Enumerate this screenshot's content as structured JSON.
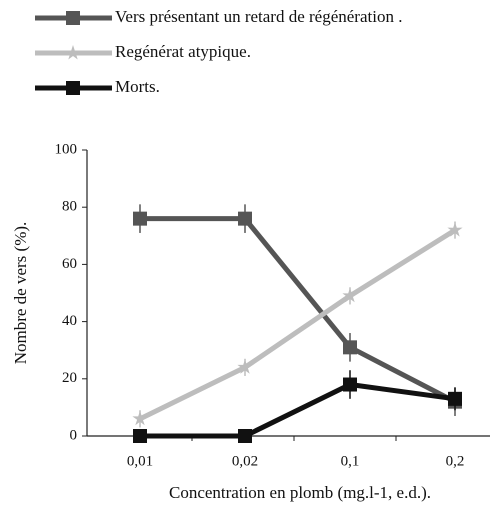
{
  "chart_data": {
    "type": "line",
    "xlabel": "Concentration en plomb (mg.l-1, e.d.).",
    "ylabel": "Nombre de vers (%).",
    "categories": [
      "0,01",
      "0,02",
      "0,1",
      "0,2"
    ],
    "ylim": [
      0,
      100
    ],
    "yticks": [
      0,
      20,
      40,
      60,
      80,
      100
    ],
    "series": [
      {
        "name": "Vers présentant un retard de régénération .",
        "color": "#555555",
        "marker": "square",
        "values": [
          76,
          76,
          31,
          12
        ],
        "errors": [
          5,
          5,
          5,
          5
        ]
      },
      {
        "name": "Regénérat atypique.",
        "color": "#bdbdbd",
        "marker": "star",
        "values": [
          6,
          24,
          49,
          72
        ],
        "errors": [
          3,
          3,
          3,
          3
        ]
      },
      {
        "name": "Morts.",
        "color": "#111111",
        "marker": "square",
        "values": [
          0,
          0,
          18,
          13
        ],
        "errors": [
          1,
          1,
          5,
          4
        ]
      }
    ]
  }
}
